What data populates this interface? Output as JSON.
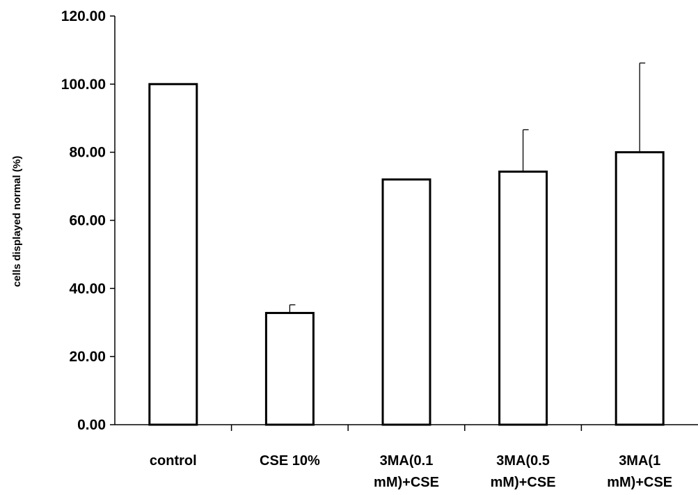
{
  "chart_data": {
    "type": "bar",
    "title": "",
    "xlabel": "",
    "ylabel": "cells displayed normal (%)",
    "ylim": [
      0,
      120
    ],
    "ytick_step": 20,
    "ytick_labels": [
      "0.00",
      "20.00",
      "40.00",
      "60.00",
      "80.00",
      "100.00",
      "120.00"
    ],
    "categories": [
      [
        "control"
      ],
      [
        "CSE 10%"
      ],
      [
        "3MA(0.1",
        "mM)+CSE"
      ],
      [
        "3MA(0.5",
        "mM)+CSE"
      ],
      [
        "3MA(1",
        "mM)+CSE"
      ]
    ],
    "values": [
      100,
      32.8,
      72,
      74.3,
      80
    ],
    "errors": [
      0,
      2.4,
      0,
      12.3,
      26.2
    ],
    "grid": false,
    "legend": "none",
    "bar_fill": "#ffffff",
    "bar_stroke": "#000000"
  }
}
